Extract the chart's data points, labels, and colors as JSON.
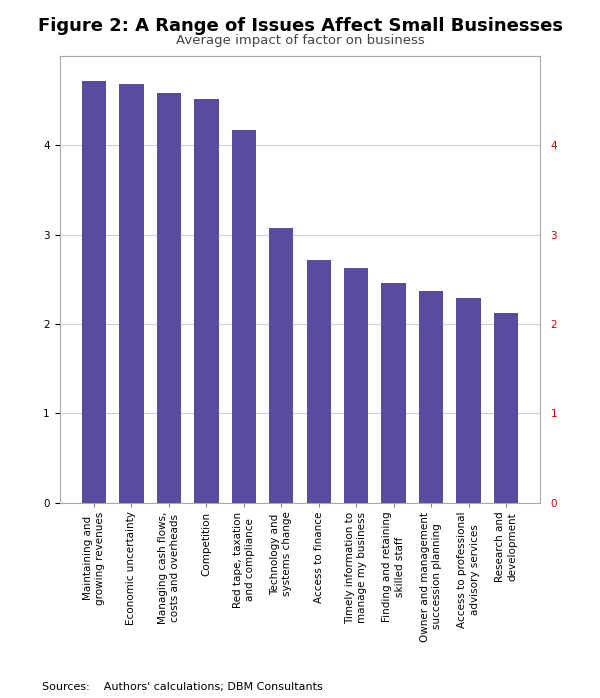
{
  "title": "Figure 2: A Range of Issues Affect Small Businesses",
  "subtitle": "Average impact of factor on business",
  "categories": [
    "Maintaining and\ngrowing revenues",
    "Economic uncertainty",
    "Managing cash flows,\ncosts and overheads",
    "Competition",
    "Red tape, taxation\nand compliance",
    "Technology and\nsystems change",
    "Access to finance",
    "Timely information to\nmanage my business",
    "Finding and retaining\nskilled staff",
    "Owner and management\nsuccession planning",
    "Access to professional\nadvisory services",
    "Research and\ndevelopment"
  ],
  "values": [
    4.72,
    4.68,
    4.58,
    4.52,
    4.17,
    3.07,
    2.71,
    2.62,
    2.46,
    2.37,
    2.29,
    2.12
  ],
  "bar_color": "#5b4b9e",
  "ylim": [
    0,
    5
  ],
  "yticks": [
    0,
    1,
    2,
    3,
    4
  ],
  "footnote": "Sources:    Authors' calculations; DBM Consultants",
  "title_fontsize": 13,
  "subtitle_fontsize": 9.5,
  "tick_fontsize": 7.5,
  "footnote_fontsize": 8,
  "background_color": "#ffffff",
  "grid_color": "#d0d0d0",
  "right_ytick_color": "#cc0000",
  "left_ytick_color": "#000000"
}
